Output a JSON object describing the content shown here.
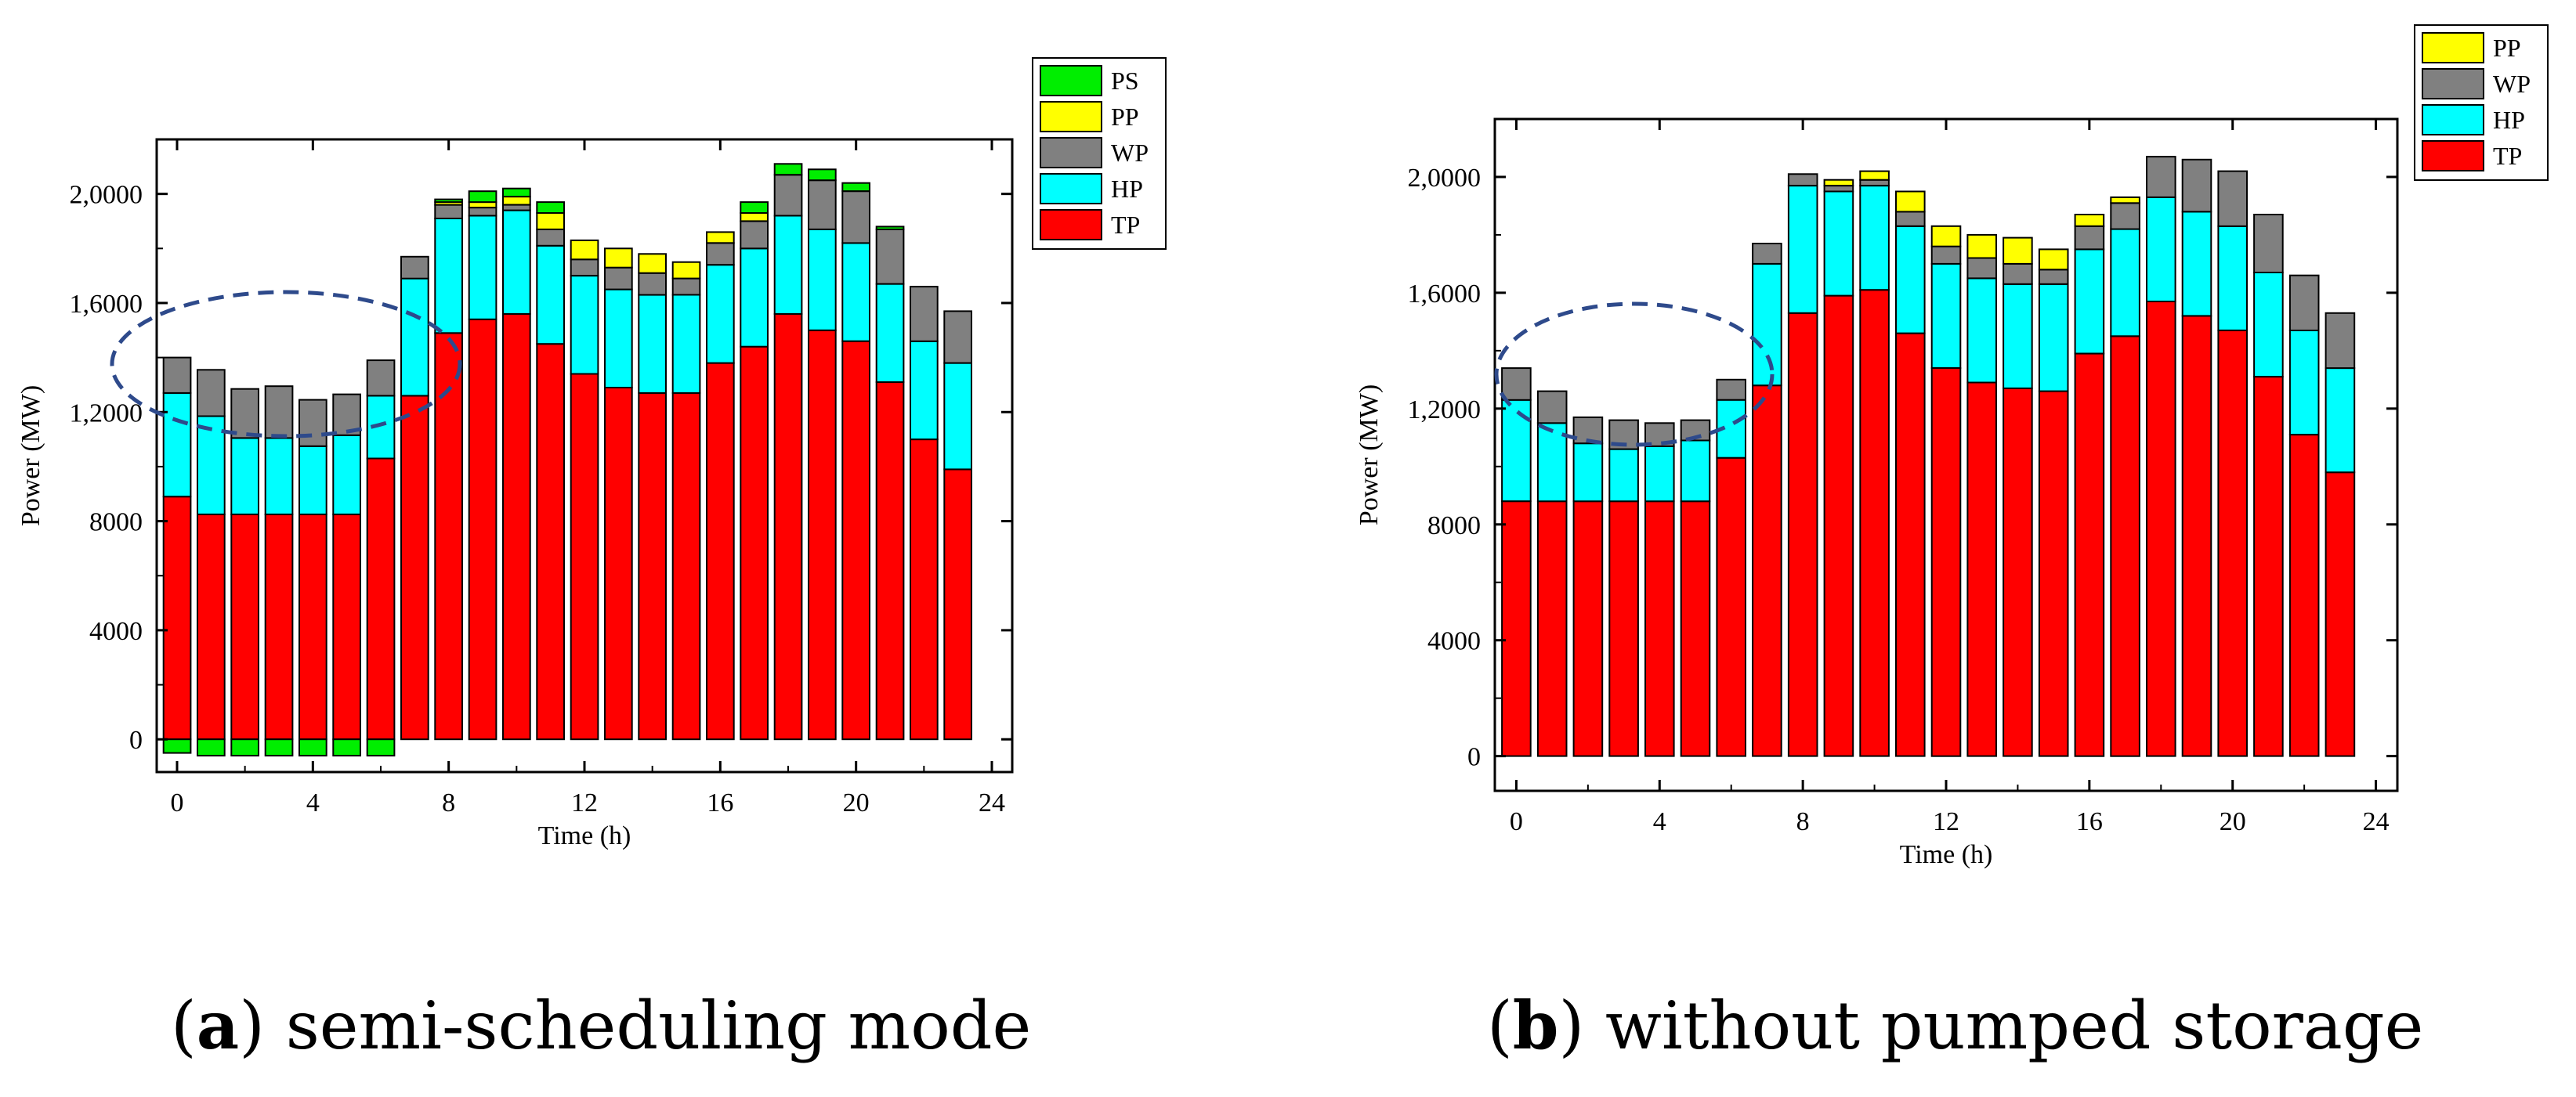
{
  "chart_data": [
    {
      "id": "a",
      "type": "bar",
      "stacked": true,
      "xlabel": "Time (h)",
      "ylabel": "Power (MW)",
      "xlim": [
        -0.6,
        24.6
      ],
      "ylim": [
        -1200,
        22000
      ],
      "xticks": [
        {
          "value": 0,
          "label": "0"
        },
        {
          "value": 4,
          "label": "4"
        },
        {
          "value": 8,
          "label": "8"
        },
        {
          "value": 12,
          "label": "12"
        },
        {
          "value": 16,
          "label": "16"
        },
        {
          "value": 20,
          "label": "20"
        },
        {
          "value": 24,
          "label": "24"
        }
      ],
      "yticks": [
        {
          "value": 0,
          "label": "0"
        },
        {
          "value": 4000,
          "label": "4000"
        },
        {
          "value": 8000,
          "label": "8000"
        },
        {
          "value": 12000,
          "label": "1,2000"
        },
        {
          "value": 16000,
          "label": "1,6000"
        },
        {
          "value": 20000,
          "label": "2,0000"
        }
      ],
      "hours": [
        0,
        1,
        2,
        3,
        4,
        5,
        6,
        7,
        8,
        9,
        10,
        11,
        12,
        13,
        14,
        15,
        16,
        17,
        18,
        19,
        20,
        21,
        22,
        23
      ],
      "legend": [
        "PS",
        "PP",
        "WP",
        "HP",
        "TP"
      ],
      "legend_position": "top-right",
      "series": [
        {
          "name": "TP",
          "color": "#ff0000",
          "values": [
            8900,
            8250,
            8250,
            8250,
            8250,
            8250,
            10300,
            12600,
            14900,
            15400,
            15600,
            14500,
            13400,
            12900,
            12700,
            12700,
            13800,
            14400,
            15600,
            15000,
            14600,
            13100,
            11000,
            9900
          ]
        },
        {
          "name": "HP",
          "color": "#00ffff",
          "values": [
            3800,
            3600,
            2800,
            2800,
            2500,
            2900,
            2300,
            4300,
            4200,
            3800,
            3800,
            3600,
            3600,
            3600,
            3600,
            3600,
            3600,
            3600,
            3600,
            3700,
            3600,
            3600,
            3600,
            3900
          ]
        },
        {
          "name": "WP",
          "color": "#808080",
          "values": [
            1300,
            1700,
            1800,
            1900,
            1700,
            1500,
            1300,
            800,
            500,
            300,
            200,
            600,
            600,
            800,
            800,
            600,
            800,
            1000,
            1500,
            1800,
            1900,
            2000,
            2000,
            1900
          ]
        },
        {
          "name": "PP",
          "color": "#ffff00",
          "values": [
            0,
            0,
            0,
            0,
            0,
            0,
            0,
            0,
            100,
            200,
            300,
            600,
            700,
            700,
            700,
            600,
            400,
            300,
            0,
            0,
            0,
            0,
            0,
            0
          ]
        },
        {
          "name": "PS",
          "color": "#00ee00",
          "values": [
            -500,
            -600,
            -600,
            -600,
            -600,
            -600,
            -600,
            0,
            100,
            400,
            300,
            400,
            0,
            0,
            0,
            0,
            0,
            400,
            400,
            400,
            300,
            100,
            0,
            0
          ]
        }
      ],
      "annotation": "dashed ellipse around hours 0-6",
      "caption_label": "a",
      "caption_text": ") semi-scheduling mode"
    },
    {
      "id": "b",
      "type": "bar",
      "stacked": true,
      "xlabel": "Time (h)",
      "ylabel": "Power (MW)",
      "xlim": [
        -0.6,
        24.6
      ],
      "ylim": [
        -1200,
        22000
      ],
      "xticks": [
        {
          "value": 0,
          "label": "0"
        },
        {
          "value": 4,
          "label": "4"
        },
        {
          "value": 8,
          "label": "8"
        },
        {
          "value": 12,
          "label": "12"
        },
        {
          "value": 16,
          "label": "16"
        },
        {
          "value": 20,
          "label": "20"
        },
        {
          "value": 24,
          "label": "24"
        }
      ],
      "yticks": [
        {
          "value": 0,
          "label": "0"
        },
        {
          "value": 4000,
          "label": "4000"
        },
        {
          "value": 8000,
          "label": "8000"
        },
        {
          "value": 12000,
          "label": "1,2000"
        },
        {
          "value": 16000,
          "label": "1,6000"
        },
        {
          "value": 20000,
          "label": "2,0000"
        }
      ],
      "hours": [
        0,
        1,
        2,
        3,
        4,
        5,
        6,
        7,
        8,
        9,
        10,
        11,
        12,
        13,
        14,
        15,
        16,
        17,
        18,
        19,
        20,
        21,
        22,
        23
      ],
      "legend": [
        "PP",
        "WP",
        "HP",
        "TP"
      ],
      "legend_position": "top-right (outside)",
      "series": [
        {
          "name": "TP",
          "color": "#ff0000",
          "values": [
            8800,
            8800,
            8800,
            8800,
            8800,
            8800,
            10300,
            12800,
            15300,
            15900,
            16100,
            14600,
            13400,
            12900,
            12700,
            12600,
            13900,
            14500,
            15700,
            15200,
            14700,
            13100,
            11100,
            9800
          ]
        },
        {
          "name": "HP",
          "color": "#00ffff",
          "values": [
            3500,
            2700,
            2000,
            1800,
            1900,
            2100,
            2000,
            4200,
            4400,
            3600,
            3600,
            3700,
            3600,
            3600,
            3600,
            3700,
            3600,
            3700,
            3600,
            3600,
            3600,
            3600,
            3600,
            3600
          ]
        },
        {
          "name": "WP",
          "color": "#808080",
          "values": [
            1100,
            1100,
            900,
            1000,
            800,
            700,
            700,
            700,
            400,
            200,
            200,
            500,
            600,
            700,
            700,
            500,
            800,
            900,
            1400,
            1800,
            1900,
            2000,
            1900,
            1900
          ]
        },
        {
          "name": "PP",
          "color": "#ffff00",
          "values": [
            0,
            0,
            0,
            0,
            0,
            0,
            0,
            0,
            0,
            200,
            300,
            700,
            700,
            800,
            900,
            700,
            400,
            200,
            0,
            0,
            0,
            0,
            0,
            0
          ]
        }
      ],
      "annotation": "dashed ellipse around hours 0-5",
      "caption_label": "b",
      "caption_text": ") without pumped storage"
    }
  ]
}
